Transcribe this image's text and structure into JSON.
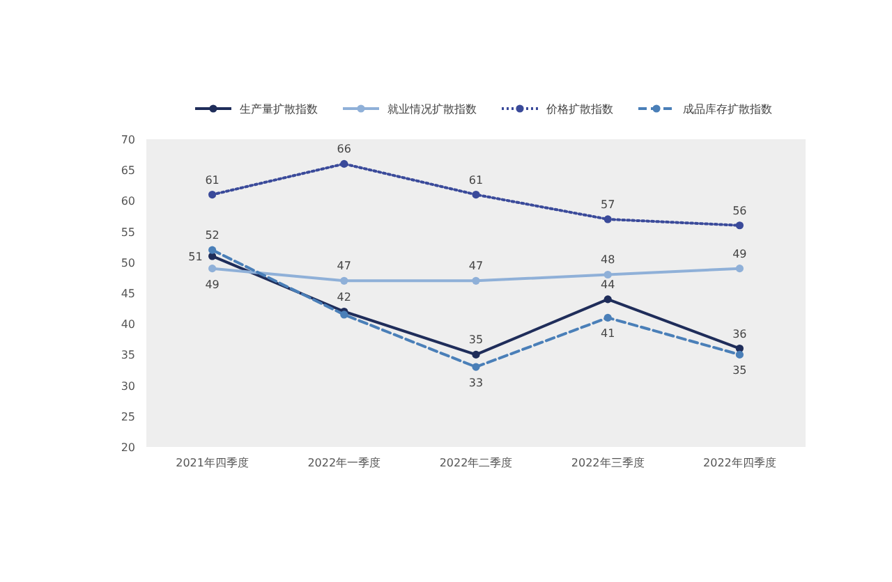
{
  "chart_data": {
    "type": "line",
    "categories": [
      "2021年四季度",
      "2022年一季度",
      "2022年二季度",
      "2022年三季度",
      "2022年四季度"
    ],
    "series": [
      {
        "name": "生产量扩散指数",
        "color": "#1f2d5a",
        "line_style": "solid",
        "values": [
          51,
          42,
          35,
          44,
          36
        ],
        "value_labels": [
          "51",
          "42",
          "35",
          "44",
          "36"
        ]
      },
      {
        "name": "就业情况扩散指数",
        "color": "#8fb0d8",
        "line_style": "solid",
        "values": [
          49,
          47,
          47,
          48,
          49
        ],
        "value_labels": [
          "49",
          "47",
          "47",
          "48",
          "49"
        ]
      },
      {
        "name": "价格扩散指数",
        "color": "#3a4a9a",
        "line_style": "dotted",
        "values": [
          61,
          66,
          61,
          57,
          56
        ],
        "value_labels": [
          "61",
          "66",
          "61",
          "57",
          "56"
        ]
      },
      {
        "name": "成品库存扩散指数",
        "color": "#4a7fb8",
        "line_style": "dashed",
        "values": [
          52,
          41.5,
          33,
          41,
          35
        ],
        "value_labels": [
          "52",
          null,
          "33",
          "41",
          "35"
        ]
      }
    ],
    "ylim": [
      20,
      70
    ],
    "yticks": [
      20,
      25,
      30,
      35,
      40,
      45,
      50,
      55,
      60,
      65,
      70
    ],
    "marker": "circle",
    "grid": false,
    "legend": "top"
  }
}
